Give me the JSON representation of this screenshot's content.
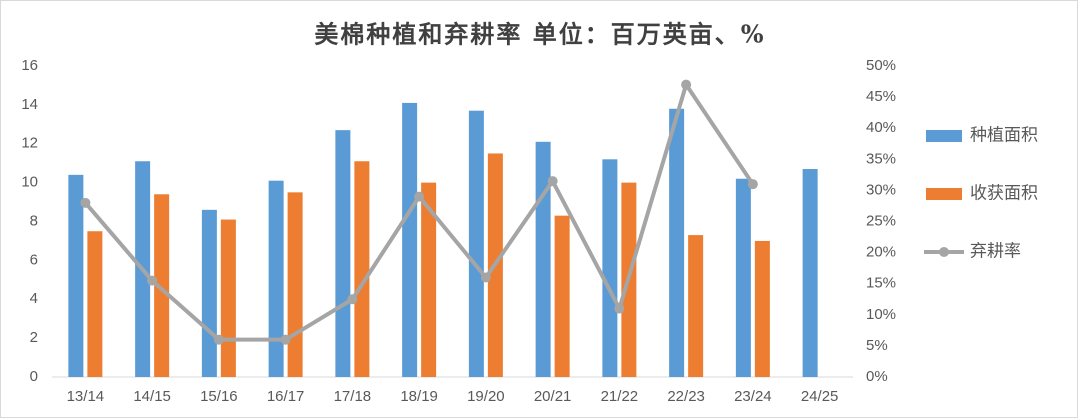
{
  "chart_data": {
    "type": "bar-line",
    "title": "美棉种植和弃耕率   单位：百万英亩、%",
    "categories": [
      "13/14",
      "14/15",
      "15/16",
      "16/17",
      "17/18",
      "18/19",
      "19/20",
      "20/21",
      "21/22",
      "22/23",
      "23/24",
      "24/25"
    ],
    "series": [
      {
        "name": "种植面积",
        "type": "bar",
        "color": "#5b9bd5",
        "values": [
          10.4,
          11.1,
          8.6,
          10.1,
          12.7,
          14.1,
          13.7,
          12.1,
          11.2,
          13.8,
          10.2,
          10.7
        ]
      },
      {
        "name": "收获面积",
        "type": "bar",
        "color": "#ed7d31",
        "values": [
          7.5,
          9.4,
          8.1,
          9.5,
          11.1,
          10.0,
          11.5,
          8.3,
          10.0,
          7.3,
          7.0,
          null
        ]
      },
      {
        "name": "弃耕率",
        "type": "line",
        "axis": "y2",
        "color": "#a5a5a5",
        "values": [
          28,
          15.5,
          6,
          6,
          12.5,
          29,
          16,
          31.5,
          11,
          47,
          31,
          null
        ]
      }
    ],
    "ylim": [
      0,
      16
    ],
    "yticks": [
      0,
      2,
      4,
      6,
      8,
      10,
      12,
      14,
      16
    ],
    "y2lim": [
      0,
      50
    ],
    "y2ticks": [
      {
        "value": 0,
        "label": "0%"
      },
      {
        "value": 5,
        "label": "5%"
      },
      {
        "value": 10,
        "label": "10%"
      },
      {
        "value": 15,
        "label": "15%"
      },
      {
        "value": 20,
        "label": "20%"
      },
      {
        "value": 25,
        "label": "25%"
      },
      {
        "value": 30,
        "label": "30%"
      },
      {
        "value": 35,
        "label": "35%"
      },
      {
        "value": 40,
        "label": "40%"
      },
      {
        "value": 45,
        "label": "45%"
      },
      {
        "value": 50,
        "label": "50%"
      }
    ],
    "legend": "right"
  }
}
